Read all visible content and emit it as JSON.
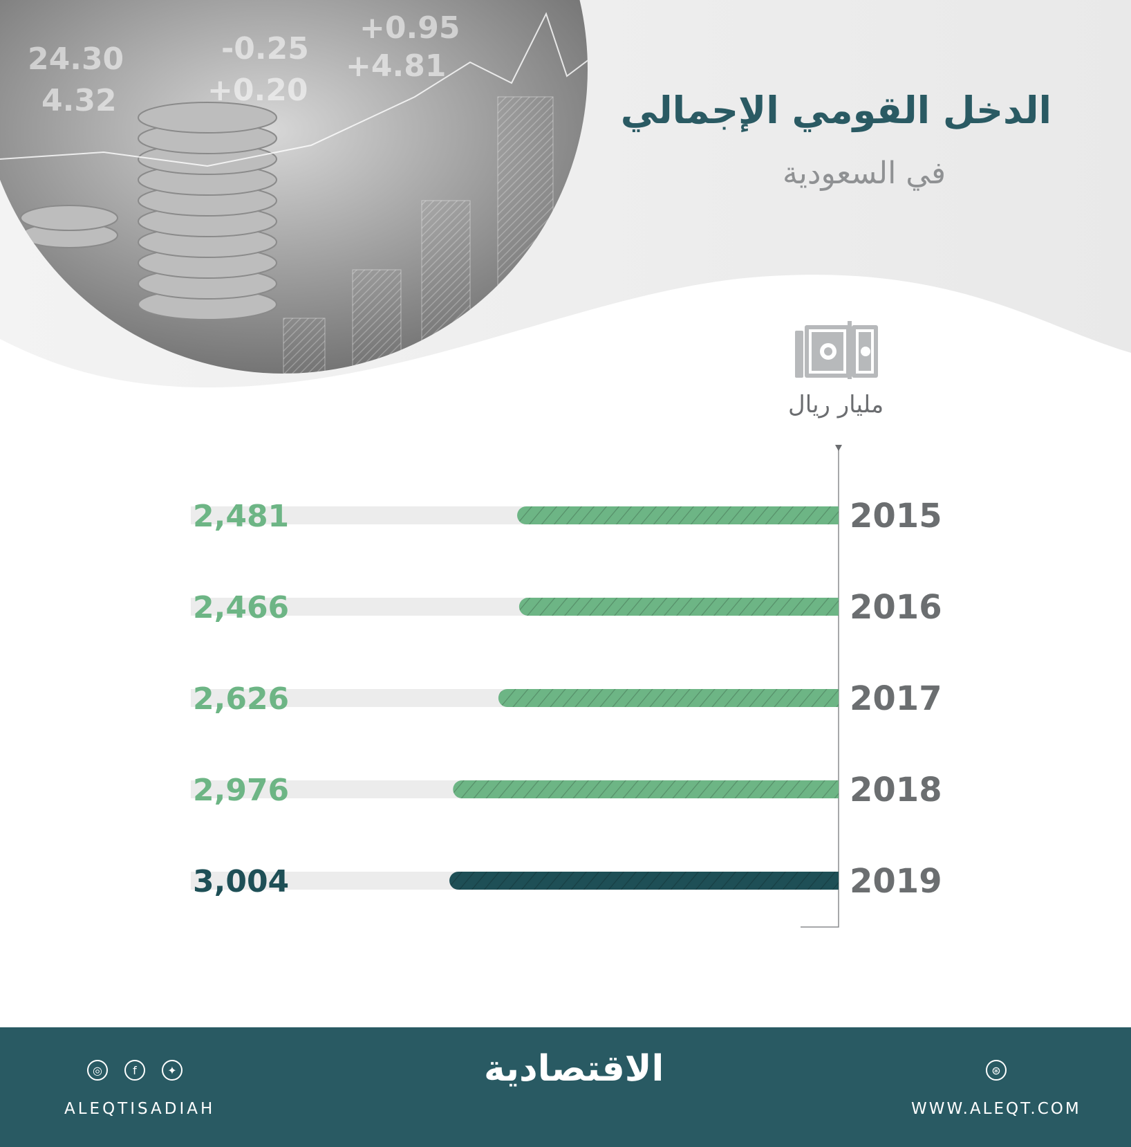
{
  "header": {
    "title": "الدخل القومي الإجمالي",
    "subtitle": "في السعودية",
    "unit": "مليار ريال"
  },
  "colors": {
    "bar_regular": "#6db585",
    "bar_highlight": "#1e4f56",
    "track": "#ececec",
    "title": "#2a5a63",
    "footer": "#295a63"
  },
  "chart_data": {
    "type": "bar",
    "orientation": "horizontal",
    "categories": [
      "2015",
      "2016",
      "2017",
      "2018",
      "2019"
    ],
    "values": [
      2481,
      2466,
      2626,
      2976,
      3004
    ],
    "value_labels": [
      "2,481",
      "2,466",
      "2,626",
      "2,976",
      "3,004"
    ],
    "highlight_category": "2019",
    "ylabel": "مليار ريال",
    "xlim": [
      0,
      5000
    ]
  },
  "footer": {
    "handle": "ALEQTISADIAH",
    "logo": "الاقتصادية",
    "website": "WWW.ALEQT.COM",
    "icons": [
      "instagram-icon",
      "facebook-icon",
      "twitter-icon",
      "dribbble-icon"
    ]
  }
}
